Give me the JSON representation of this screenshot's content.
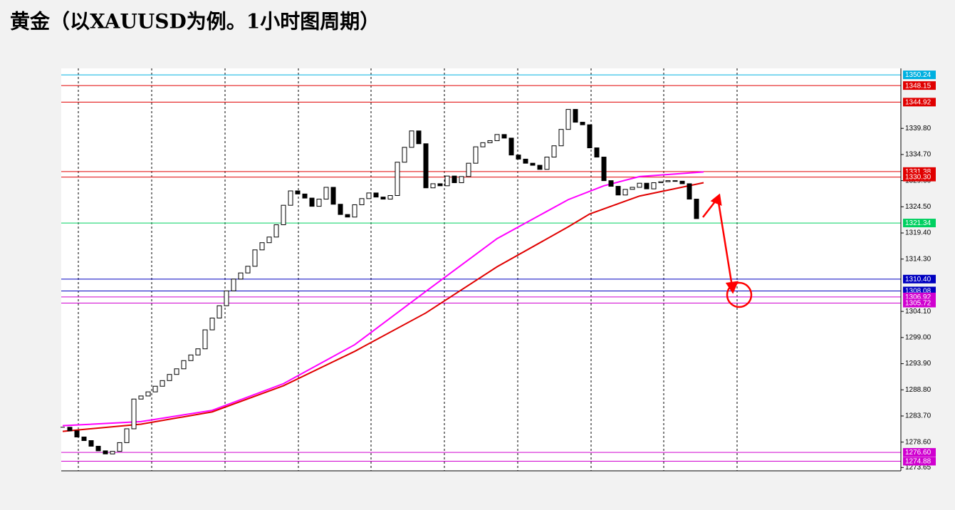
{
  "chart_data": {
    "type": "candlestick",
    "title": "黄金（以XAUUSD为例。1小时图周期）",
    "xlim": [
      -0.2,
      117.7
    ],
    "xticks": [
      2.2,
      12.5,
      22.8,
      33.1,
      43.3,
      53.6,
      63.9,
      74.2,
      84.4,
      94.7
    ],
    "ylim": [
      1273.0,
      1351.5
    ],
    "yticks": [
      1273.65,
      {
        "value": 1278.6,
        "label": "1278.60"
      },
      {
        "value": 1283.7,
        "label": "1283.70"
      },
      {
        "value": 1288.8,
        "label": "1288.80"
      },
      {
        "value": 1293.9,
        "label": "1293.90"
      },
      {
        "value": 1299.0,
        "label": "1299.00"
      },
      {
        "value": 1304.1,
        "label": "1304.10"
      },
      {
        "value": 1314.3,
        "label": "1314.30"
      },
      {
        "value": 1319.4,
        "label": "1319.40"
      },
      {
        "value": 1324.5,
        "label": "1324.50"
      },
      {
        "value": 1329.6,
        "label": "1329.60"
      },
      {
        "value": 1334.7,
        "label": "1334.70"
      },
      {
        "value": 1339.8,
        "label": "1339.80"
      }
    ],
    "close": [
      1281.5,
      1280.8,
      1279.6,
      1278.9,
      1277.8,
      1276.9,
      1276.3,
      1276.8,
      1278.5,
      1281.2,
      1287.0,
      1287.6,
      1288.4,
      1289.5,
      1290.6,
      1291.8,
      1292.9,
      1294.5,
      1295.6,
      1296.8,
      1300.5,
      1302.8,
      1305.2,
      1308.1,
      1310.4,
      1311.6,
      1312.9,
      1316.1,
      1317.5,
      1318.6,
      1321.0,
      1324.8,
      1327.6,
      1327.0,
      1326.2,
      1324.6,
      1326.0,
      1328.3,
      1325.0,
      1323.0,
      1322.5,
      1324.9,
      1326.1,
      1327.2,
      1326.4,
      1326.0,
      1326.7,
      1333.2,
      1336.1,
      1339.3,
      1336.8,
      1328.2,
      1329.0,
      1328.6,
      1330.5,
      1329.2,
      1330.4,
      1333.0,
      1336.2,
      1337.0,
      1337.4,
      1338.6,
      1337.9,
      1334.6,
      1333.8,
      1333.0,
      1332.6,
      1331.8,
      1334.2,
      1336.4,
      1339.6,
      1343.5,
      1341.0,
      1340.5,
      1336.0,
      1334.2,
      1329.6,
      1328.5,
      1326.8,
      1327.9,
      1328.3,
      1329.1,
      1328.0,
      1329.2,
      1329.4,
      1329.6,
      1329.5,
      1329.0,
      1326.0,
      1322.2
    ],
    "series": [
      {
        "color": "#ff00ff",
        "x": [
          0,
          11,
          21,
          31,
          41,
          51,
          61,
          71,
          76,
          81,
          90
        ],
        "values": [
          1281.8,
          1282.6,
          1284.8,
          1290.0,
          1297.6,
          1308.0,
          1318.3,
          1325.9,
          1328.6,
          1330.4,
          1331.3
        ]
      },
      {
        "color": "#e00000",
        "x": [
          0,
          11,
          21,
          31,
          41,
          51,
          61,
          71,
          74,
          81,
          90
        ],
        "values": [
          1280.7,
          1282.1,
          1284.5,
          1289.6,
          1296.3,
          1303.8,
          1312.8,
          1320.6,
          1323.1,
          1326.6,
          1329.2
        ]
      }
    ],
    "levels": {
      "values": [
        1350.24,
        1348.15,
        1344.92,
        1331.38,
        1330.3,
        1321.34,
        1310.4,
        1308.08,
        1306.92,
        1305.72,
        1276.6,
        1274.88
      ],
      "value_labels": [
        "1350.24",
        "1348.15",
        "1344.92",
        "1331.38",
        "1330.30",
        "1321.34",
        "1310.40",
        "1308.08",
        "1306.92",
        "1305.72",
        "1276.60",
        "1274.88"
      ],
      "colors": [
        "#00b0e0",
        "#e00000",
        "#e00000",
        "#e00000",
        "#e00000",
        "#00d060",
        "#0000c0",
        "#0000c0",
        "#d000d0",
        "#d000d0",
        "#d000d0",
        "#d000d0"
      ]
    }
  }
}
